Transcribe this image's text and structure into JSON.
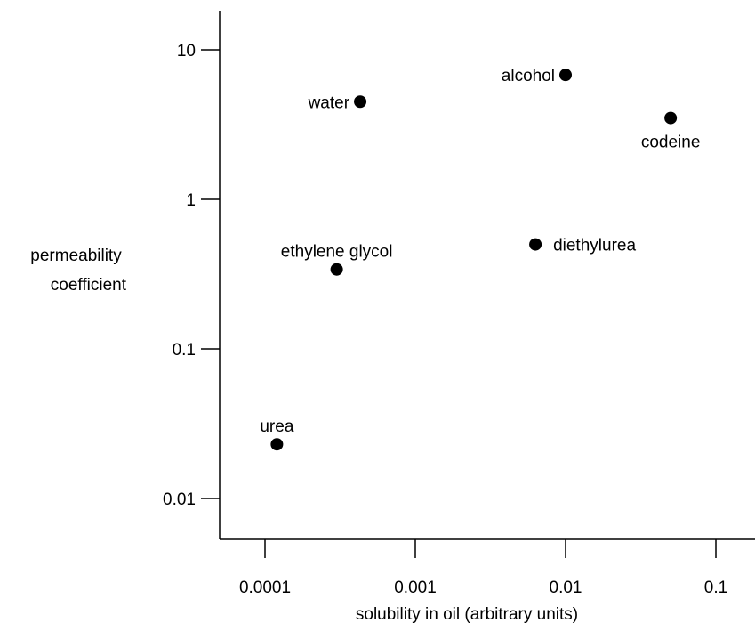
{
  "chart_data": {
    "type": "scatter",
    "title": "",
    "xlabel": "solubility in oil (arbitrary units)",
    "ylabel_lines": [
      "permeability",
      "coefficient"
    ],
    "x_scale": "log",
    "y_scale": "log",
    "xlim": [
      3e-05,
      0.3
    ],
    "ylim": [
      0.005,
      20
    ],
    "x_ticks": [
      0.0001,
      0.001,
      0.01,
      0.1
    ],
    "x_tick_labels": [
      "0.0001",
      "0.001",
      "0.01",
      "0.1"
    ],
    "y_ticks": [
      0.01,
      0.1,
      1,
      10
    ],
    "y_tick_labels": [
      "0.01",
      "0.1",
      "1",
      "10"
    ],
    "grid": false,
    "legend": "none",
    "points": [
      {
        "label": "water",
        "x": 0.00043,
        "y": 4.5,
        "label_pos": "left"
      },
      {
        "label": "alcohol",
        "x": 0.01,
        "y": 6.8,
        "label_pos": "left"
      },
      {
        "label": "codeine",
        "x": 0.05,
        "y": 3.5,
        "label_pos": "below"
      },
      {
        "label": "ethylene glycol",
        "x": 0.0003,
        "y": 0.34,
        "label_pos": "above"
      },
      {
        "label": "diethylurea",
        "x": 0.0063,
        "y": 0.5,
        "label_pos": "right"
      },
      {
        "label": "urea",
        "x": 0.00012,
        "y": 0.023,
        "label_pos": "above"
      }
    ]
  }
}
